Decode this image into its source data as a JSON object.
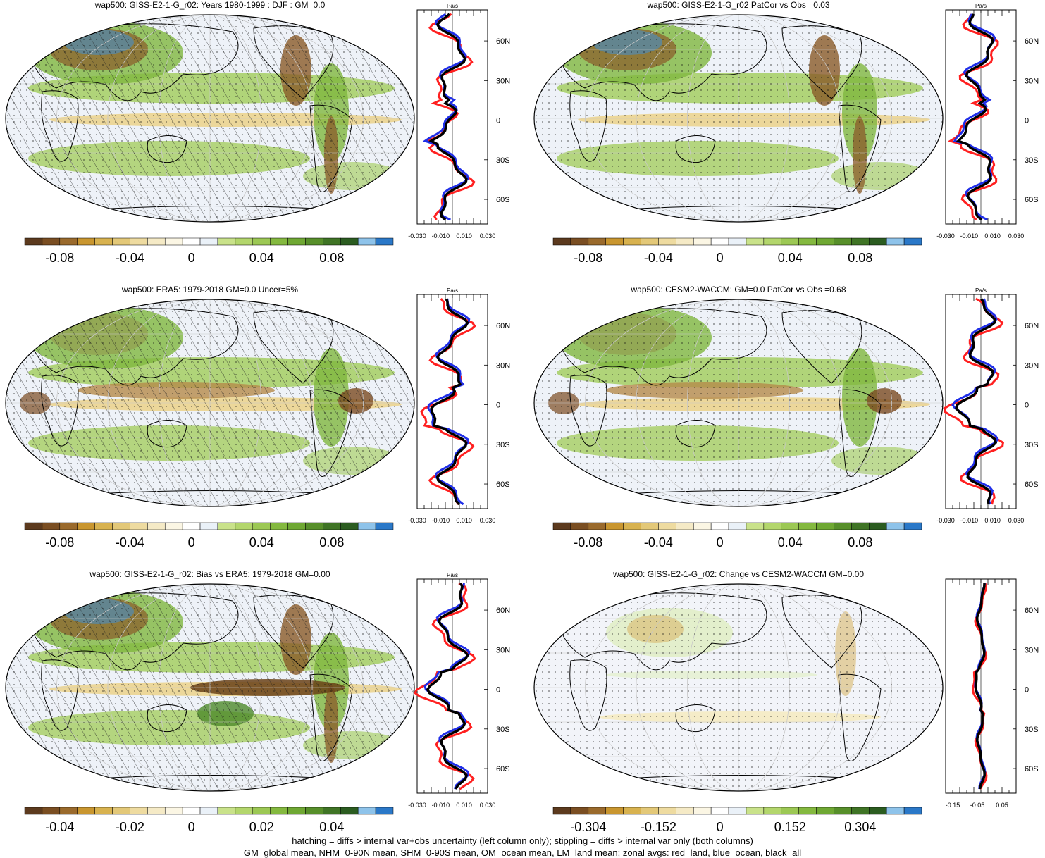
{
  "panels": [
    {
      "id": "p1",
      "title": "wap500: GISS-E2-1-G_r02: Years 1980-1999 : DJF : GM=0.0",
      "hatching": true,
      "colorbar_ticks": [
        "-0.08",
        "-0.04",
        "0",
        "0.04",
        "0.08"
      ],
      "zonal_units": "Pa/s",
      "zonal_xticks": [
        "-0.030",
        "-0.010",
        "0.010",
        "0.030"
      ],
      "zonal_yticks": [
        "60N",
        "30N",
        "0",
        "30S",
        "60S"
      ]
    },
    {
      "id": "p2",
      "title": "wap500: GISS-E2-1-G_r02 PatCor vs Obs =0.03",
      "hatching": false,
      "colorbar_ticks": [
        "-0.08",
        "-0.04",
        "0",
        "0.04",
        "0.08"
      ],
      "zonal_units": "Pa/s",
      "zonal_xticks": [
        "-0.030",
        "-0.010",
        "0.010",
        "0.030"
      ],
      "zonal_yticks": [
        "60N",
        "30N",
        "0",
        "30S",
        "60S"
      ]
    },
    {
      "id": "p3",
      "title": "wap500: ERA5: 1979-2018 GM=0.0 Uncer=5%",
      "hatching": true,
      "colorbar_ticks": [
        "-0.08",
        "-0.04",
        "0",
        "0.04",
        "0.08"
      ],
      "zonal_units": "Pa/s",
      "zonal_xticks": [
        "-0.030",
        "-0.010",
        "0.010",
        "0.030"
      ],
      "zonal_yticks": [
        "60N",
        "30N",
        "0",
        "30S",
        "60S"
      ]
    },
    {
      "id": "p4",
      "title": "wap500: CESM2-WACCM: GM=0.0 PatCor vs Obs =0.68",
      "hatching": false,
      "colorbar_ticks": [
        "-0.08",
        "-0.04",
        "0",
        "0.04",
        "0.08"
      ],
      "zonal_units": "Pa/s",
      "zonal_xticks": [
        "-0.030",
        "-0.010",
        "0.010",
        "0.030"
      ],
      "zonal_yticks": [
        "60N",
        "30N",
        "0",
        "30S",
        "60S"
      ]
    },
    {
      "id": "p5",
      "title": "wap500: GISS-E2-1-G_r02: Bias vs ERA5: 1979-2018 GM=0.00",
      "hatching": true,
      "colorbar_ticks": [
        "-0.04",
        "-0.02",
        "0",
        "0.02",
        "0.04"
      ],
      "zonal_units": "Pa/s",
      "zonal_xticks": [
        "-0.030",
        "-0.010",
        "0.010",
        "0.030"
      ],
      "zonal_yticks": [
        "60N",
        "30N",
        "0",
        "30S",
        "60S"
      ]
    },
    {
      "id": "p6",
      "title": "wap500: GISS-E2-1-G_r02: Change vs CESM2-WACCM GM=0.00",
      "hatching": false,
      "colorbar_ticks": [
        "-0.304",
        "-0.152",
        "0",
        "0.152",
        "0.304"
      ],
      "zonal_units": "",
      "zonal_xticks": [
        "-0.15",
        "-0.05",
        "0.05"
      ],
      "zonal_yticks": [
        "60N",
        "30N",
        "0",
        "30S",
        "60S"
      ]
    }
  ],
  "colorbar_colors": [
    "#5c3a1e",
    "#7a4e22",
    "#9a6a2c",
    "#c9962f",
    "#d8b24f",
    "#e3c878",
    "#eedba0",
    "#f5eac6",
    "#fbf6e4",
    "#ffffff",
    "#eaf1f8",
    "#c9e28a",
    "#b3d66c",
    "#9cc854",
    "#84b93f",
    "#6fa833",
    "#578f2a",
    "#3f7425",
    "#2b5c20",
    "#8ec3ea",
    "#2a78c8"
  ],
  "footer": {
    "line1": "hatching = diffs > internal var+obs uncertainty (left column only); stippling = diffs > internal var only (both columns)",
    "line2": "GM=global mean, NHM=0-90N mean, SHM=0-90S mean, OM=ocean mean, LM=land mean; zonal avgs: red=land, blue=ocean, black=all"
  }
}
